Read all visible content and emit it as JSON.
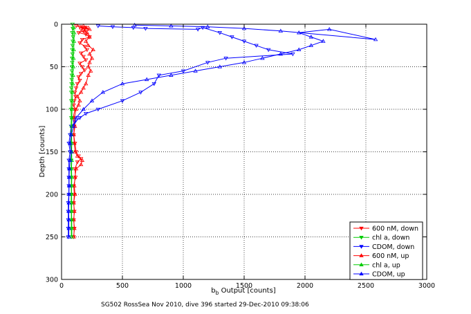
{
  "chart_data": {
    "type": "scatter",
    "xlabel_main": "b",
    "xlabel_sub": "b",
    "xlabel_rest": " Output [counts]",
    "ylabel": "Depth [counts]",
    "caption": "SG502 RossSea Nov 2010, dive 396 started 29-Dec-2010 09:38:06",
    "xlim": [
      0,
      3000
    ],
    "ylim": [
      0,
      300
    ],
    "y_reversed": true,
    "grid": true,
    "legend_position": "bottom-right",
    "x_ticks": [
      0,
      500,
      1000,
      1500,
      2000,
      2500,
      3000
    ],
    "y_ticks": [
      0,
      50,
      100,
      150,
      200,
      250,
      300
    ],
    "series": [
      {
        "name": "600 nM, down",
        "color": "#ff0000",
        "marker": "triangle-down",
        "line": true,
        "points": [
          [
            120,
            2
          ],
          [
            150,
            3
          ],
          [
            170,
            4
          ],
          [
            190,
            5
          ],
          [
            160,
            6
          ],
          [
            210,
            4
          ],
          [
            180,
            8
          ],
          [
            140,
            10
          ],
          [
            200,
            12
          ],
          [
            230,
            15
          ],
          [
            170,
            18
          ],
          [
            150,
            22
          ],
          [
            190,
            26
          ],
          [
            210,
            30
          ],
          [
            160,
            34
          ],
          [
            180,
            38
          ],
          [
            200,
            42
          ],
          [
            150,
            46
          ],
          [
            170,
            50
          ],
          [
            190,
            54
          ],
          [
            160,
            58
          ],
          [
            140,
            62
          ],
          [
            150,
            66
          ],
          [
            130,
            70
          ],
          [
            120,
            75
          ],
          [
            110,
            80
          ],
          [
            115,
            85
          ],
          [
            105,
            90
          ],
          [
            100,
            95
          ],
          [
            110,
            100
          ],
          [
            95,
            110
          ],
          [
            105,
            120
          ],
          [
            100,
            130
          ],
          [
            110,
            140
          ],
          [
            120,
            150
          ],
          [
            140,
            155
          ],
          [
            160,
            158
          ],
          [
            130,
            162
          ],
          [
            110,
            170
          ],
          [
            115,
            180
          ],
          [
            100,
            190
          ],
          [
            105,
            200
          ],
          [
            100,
            210
          ],
          [
            105,
            220
          ],
          [
            100,
            230
          ],
          [
            105,
            240
          ],
          [
            100,
            250
          ]
        ]
      },
      {
        "name": "chl a, down",
        "color": "#00cc00",
        "marker": "triangle-down",
        "line": true,
        "points": [
          [
            90,
            0
          ],
          [
            92,
            5
          ],
          [
            88,
            10
          ],
          [
            95,
            15
          ],
          [
            92,
            20
          ],
          [
            90,
            25
          ],
          [
            88,
            30
          ],
          [
            90,
            35
          ],
          [
            86,
            40
          ],
          [
            88,
            45
          ],
          [
            86,
            50
          ],
          [
            85,
            55
          ],
          [
            84,
            60
          ],
          [
            83,
            65
          ],
          [
            82,
            70
          ],
          [
            80,
            75
          ],
          [
            80,
            80
          ],
          [
            80,
            90
          ],
          [
            78,
            100
          ],
          [
            80,
            110
          ],
          [
            78,
            120
          ],
          [
            80,
            130
          ],
          [
            78,
            140
          ],
          [
            80,
            150
          ],
          [
            80,
            160
          ],
          [
            78,
            170
          ],
          [
            80,
            180
          ],
          [
            80,
            190
          ],
          [
            80,
            200
          ],
          [
            78,
            210
          ],
          [
            80,
            220
          ],
          [
            80,
            230
          ],
          [
            80,
            240
          ],
          [
            80,
            250
          ]
        ]
      },
      {
        "name": "CDOM, down",
        "color": "#0000ff",
        "marker": "triangle-down",
        "line": true,
        "points": [
          [
            300,
            2
          ],
          [
            420,
            3
          ],
          [
            590,
            4
          ],
          [
            690,
            5
          ],
          [
            1120,
            6
          ],
          [
            1160,
            4
          ],
          [
            1300,
            10
          ],
          [
            1400,
            15
          ],
          [
            1500,
            20
          ],
          [
            1600,
            25
          ],
          [
            1700,
            30
          ],
          [
            1900,
            35
          ],
          [
            1350,
            40
          ],
          [
            1200,
            45
          ],
          [
            1000,
            55
          ],
          [
            800,
            60
          ],
          [
            760,
            70
          ],
          [
            650,
            80
          ],
          [
            500,
            90
          ],
          [
            300,
            100
          ],
          [
            200,
            105
          ],
          [
            150,
            110
          ],
          [
            110,
            115
          ],
          [
            80,
            120
          ],
          [
            70,
            130
          ],
          [
            60,
            140
          ],
          [
            70,
            150
          ],
          [
            60,
            160
          ],
          [
            60,
            170
          ],
          [
            60,
            180
          ],
          [
            60,
            190
          ],
          [
            60,
            200
          ],
          [
            55,
            210
          ],
          [
            55,
            220
          ],
          [
            55,
            230
          ],
          [
            55,
            240
          ],
          [
            55,
            250
          ]
        ]
      },
      {
        "name": "600 nM, up",
        "color": "#ff0000",
        "marker": "triangle-up",
        "line": true,
        "points": [
          [
            100,
            250
          ],
          [
            105,
            240
          ],
          [
            100,
            230
          ],
          [
            105,
            220
          ],
          [
            100,
            210
          ],
          [
            110,
            200
          ],
          [
            105,
            190
          ],
          [
            110,
            180
          ],
          [
            120,
            170
          ],
          [
            160,
            165
          ],
          [
            170,
            160
          ],
          [
            130,
            155
          ],
          [
            110,
            150
          ],
          [
            105,
            140
          ],
          [
            100,
            130
          ],
          [
            110,
            120
          ],
          [
            105,
            110
          ],
          [
            120,
            100
          ],
          [
            140,
            95
          ],
          [
            150,
            90
          ],
          [
            130,
            85
          ],
          [
            160,
            80
          ],
          [
            180,
            75
          ],
          [
            200,
            70
          ],
          [
            220,
            60
          ],
          [
            240,
            55
          ],
          [
            220,
            50
          ],
          [
            230,
            45
          ],
          [
            250,
            40
          ],
          [
            230,
            35
          ],
          [
            260,
            30
          ],
          [
            220,
            25
          ],
          [
            200,
            20
          ],
          [
            230,
            15
          ],
          [
            210,
            10
          ],
          [
            190,
            8
          ],
          [
            230,
            6
          ],
          [
            200,
            4
          ],
          [
            180,
            2
          ]
        ]
      },
      {
        "name": "chl a, up",
        "color": "#00cc00",
        "marker": "triangle-up",
        "line": true,
        "points": [
          [
            85,
            250
          ],
          [
            84,
            240
          ],
          [
            84,
            230
          ],
          [
            82,
            220
          ],
          [
            84,
            210
          ],
          [
            82,
            200
          ],
          [
            83,
            190
          ],
          [
            84,
            180
          ],
          [
            82,
            170
          ],
          [
            84,
            160
          ],
          [
            83,
            150
          ],
          [
            84,
            140
          ],
          [
            82,
            130
          ],
          [
            84,
            120
          ],
          [
            85,
            110
          ],
          [
            86,
            100
          ],
          [
            88,
            90
          ],
          [
            90,
            80
          ],
          [
            92,
            70
          ],
          [
            94,
            60
          ],
          [
            96,
            50
          ],
          [
            98,
            40
          ],
          [
            100,
            30
          ],
          [
            102,
            20
          ],
          [
            104,
            10
          ],
          [
            100,
            4
          ]
        ]
      },
      {
        "name": "CDOM, up",
        "color": "#0000ff",
        "marker": "triangle-up",
        "line": true,
        "points": [
          [
            60,
            250
          ],
          [
            60,
            240
          ],
          [
            60,
            230
          ],
          [
            58,
            220
          ],
          [
            60,
            210
          ],
          [
            60,
            200
          ],
          [
            62,
            190
          ],
          [
            62,
            180
          ],
          [
            64,
            170
          ],
          [
            70,
            160
          ],
          [
            80,
            150
          ],
          [
            70,
            140
          ],
          [
            80,
            130
          ],
          [
            100,
            120
          ],
          [
            120,
            110
          ],
          [
            180,
            100
          ],
          [
            250,
            90
          ],
          [
            340,
            80
          ],
          [
            500,
            70
          ],
          [
            700,
            65
          ],
          [
            900,
            60
          ],
          [
            1100,
            55
          ],
          [
            1300,
            50
          ],
          [
            1500,
            45
          ],
          [
            1650,
            40
          ],
          [
            1800,
            35
          ],
          [
            1950,
            30
          ],
          [
            2050,
            25
          ],
          [
            2150,
            20
          ],
          [
            2050,
            15
          ],
          [
            1950,
            10
          ],
          [
            2200,
            6
          ],
          [
            2580,
            18
          ],
          [
            1800,
            8
          ],
          [
            1500,
            5
          ],
          [
            1200,
            3
          ],
          [
            900,
            2
          ],
          [
            600,
            1
          ]
        ]
      }
    ]
  }
}
